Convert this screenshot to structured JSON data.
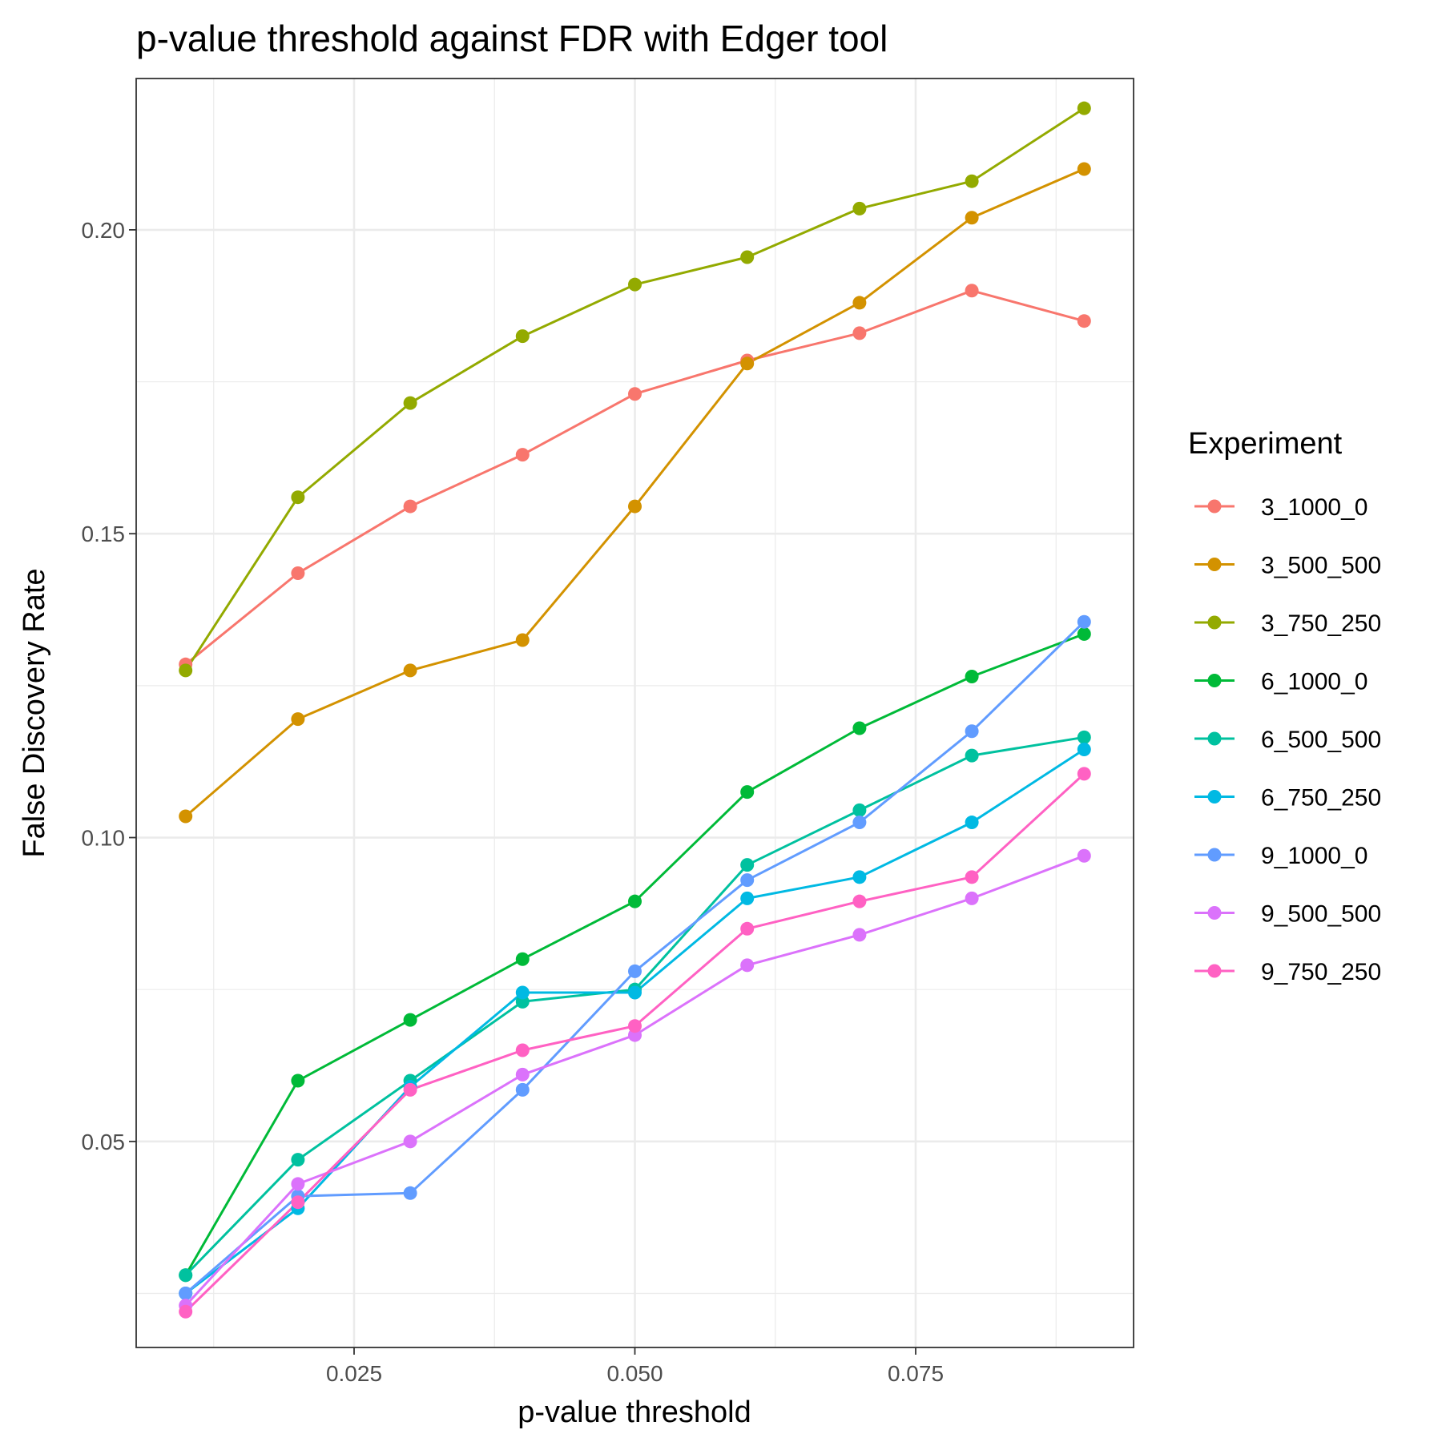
{
  "chart_data": {
    "type": "line",
    "title": "p-value threshold against FDR with Edger tool",
    "xlabel": "p-value threshold",
    "ylabel": "False Discovery Rate",
    "xlim": [
      0.0056,
      0.0944
    ],
    "ylim": [
      0.0161,
      0.2249
    ],
    "x_ticks": [
      0.025,
      0.05,
      0.075
    ],
    "x_tick_labels": [
      "0.025",
      "0.050",
      "0.075"
    ],
    "y_ticks": [
      0.05,
      0.1,
      0.15,
      0.2
    ],
    "y_tick_labels": [
      "0.05",
      "0.10",
      "0.15",
      "0.20"
    ],
    "grid": true,
    "legend": {
      "title": "Experiment",
      "position": "right"
    },
    "x": [
      0.01,
      0.02,
      0.03,
      0.04,
      0.05,
      0.06,
      0.07,
      0.08,
      0.09
    ],
    "series": [
      {
        "name": "3_1000_0",
        "color": "#F8766D",
        "values": [
          0.1285,
          0.1435,
          0.1545,
          0.163,
          0.173,
          0.1785,
          0.183,
          0.19,
          0.185
        ]
      },
      {
        "name": "3_500_500",
        "color": "#D39200",
        "values": [
          0.1035,
          0.1195,
          0.1275,
          0.1325,
          0.1545,
          0.178,
          0.188,
          0.202,
          0.21
        ]
      },
      {
        "name": "3_750_250",
        "color": "#93AA00",
        "values": [
          0.1275,
          0.156,
          0.1715,
          0.1825,
          0.191,
          0.1955,
          0.2035,
          0.208,
          0.22
        ]
      },
      {
        "name": "6_1000_0",
        "color": "#00BA38",
        "values": [
          0.028,
          0.06,
          0.07,
          0.08,
          0.0895,
          0.1075,
          0.118,
          0.1265,
          0.1335
        ]
      },
      {
        "name": "6_500_500",
        "color": "#00C19F",
        "values": [
          0.028,
          0.047,
          0.06,
          0.073,
          0.075,
          0.0955,
          0.1045,
          0.1135,
          0.1165
        ]
      },
      {
        "name": "6_750_250",
        "color": "#00B9E3",
        "values": [
          0.025,
          0.039,
          0.059,
          0.0745,
          0.0745,
          0.09,
          0.0935,
          0.1025,
          0.1145
        ]
      },
      {
        "name": "9_1000_0",
        "color": "#619CFF",
        "values": [
          0.025,
          0.041,
          0.0415,
          0.0585,
          0.078,
          0.093,
          0.1025,
          0.1175,
          0.1355
        ]
      },
      {
        "name": "9_500_500",
        "color": "#DB72FB",
        "values": [
          0.023,
          0.043,
          0.05,
          0.061,
          0.0675,
          0.079,
          0.084,
          0.09,
          0.097
        ]
      },
      {
        "name": "9_750_250",
        "color": "#FF61C3",
        "values": [
          0.022,
          0.04,
          0.0585,
          0.065,
          0.069,
          0.085,
          0.0895,
          0.0935,
          0.1105
        ]
      }
    ]
  }
}
